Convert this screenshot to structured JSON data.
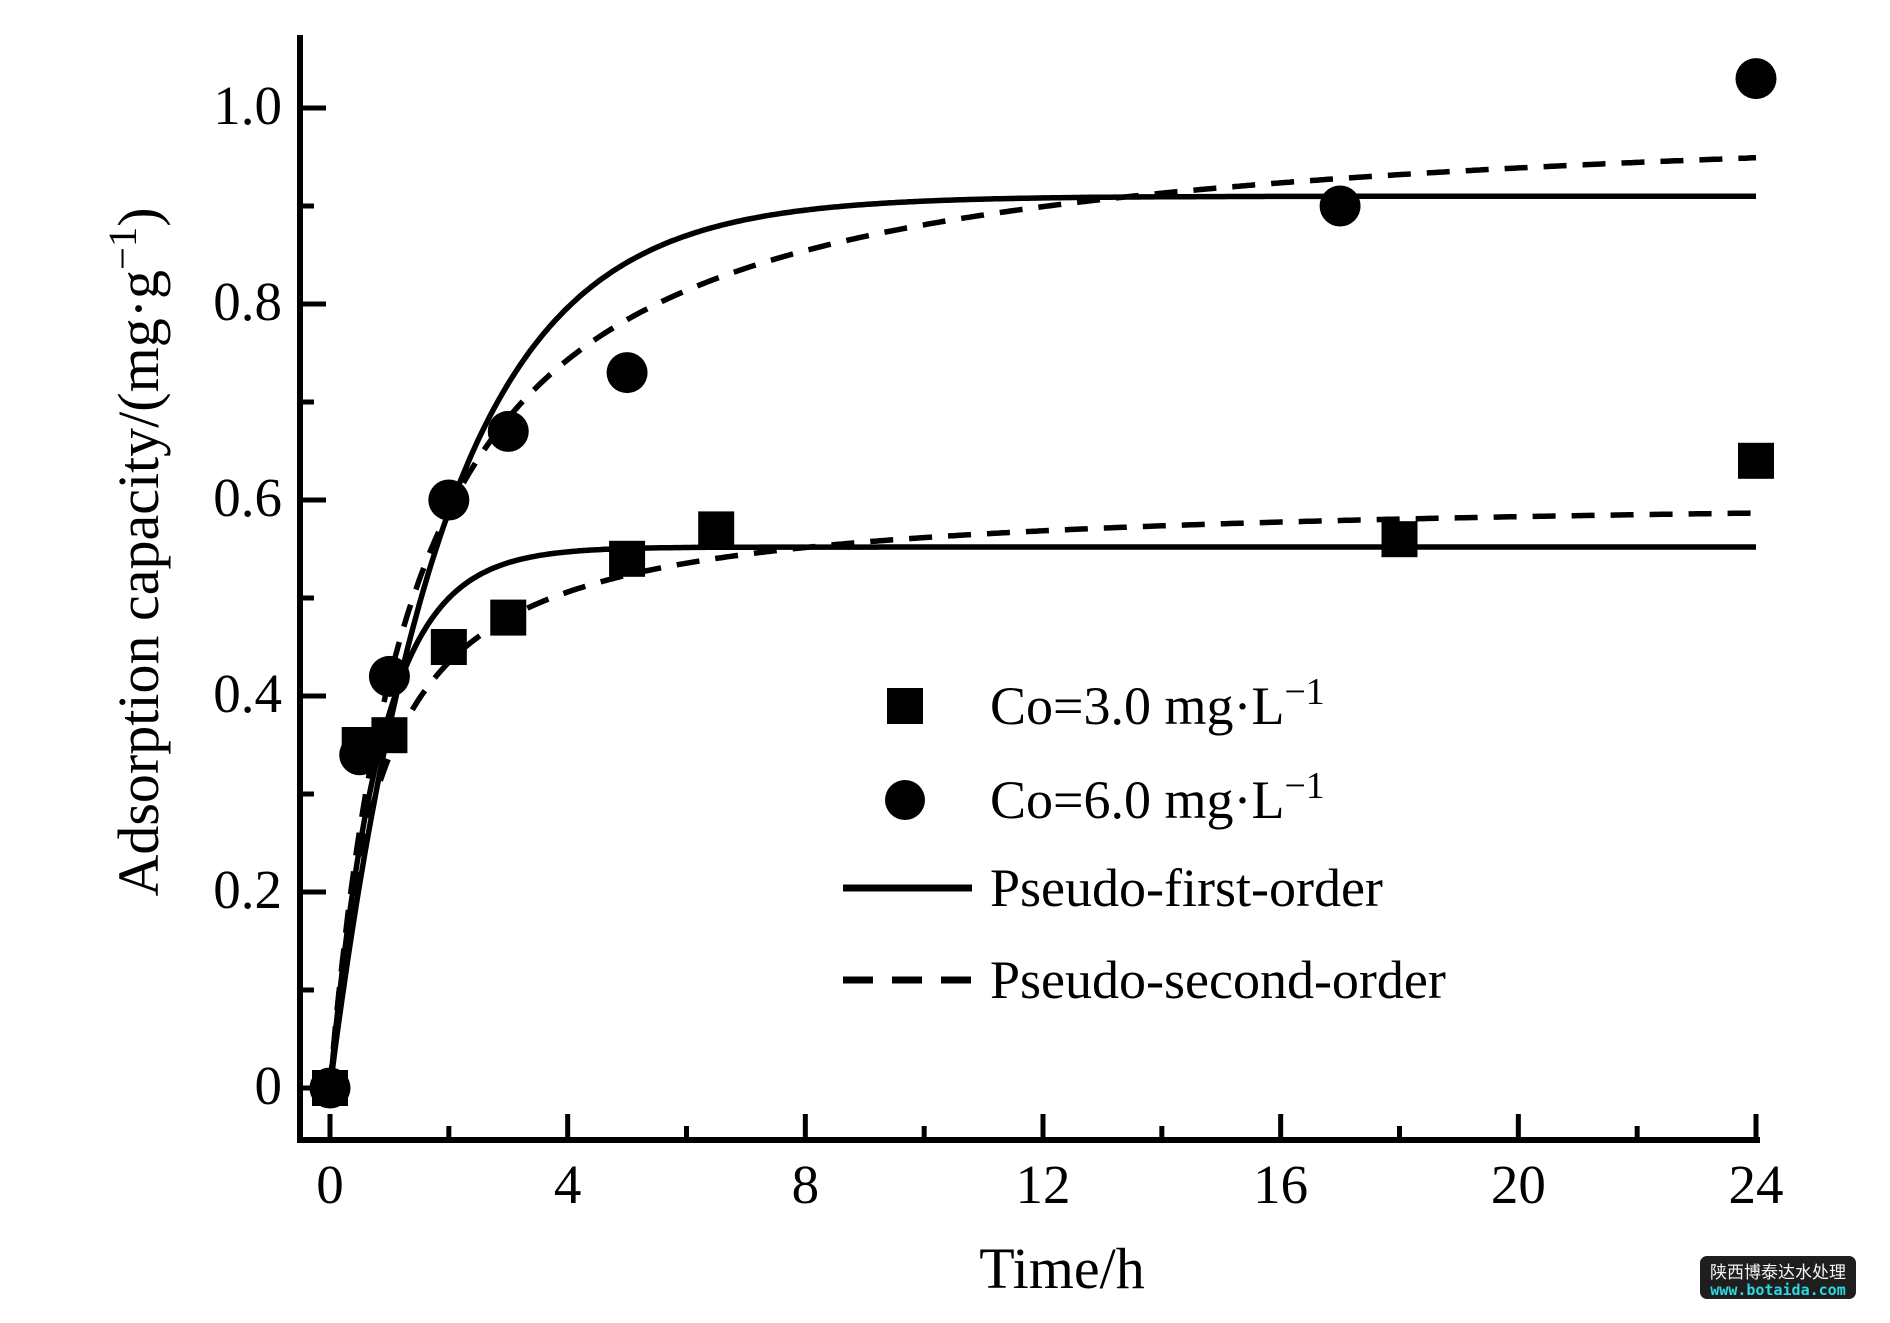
{
  "figure": {
    "x_axis": {
      "label": "Time/h",
      "major_ticks": [
        0,
        4,
        8,
        12,
        16,
        20,
        24
      ],
      "minor_ticks": [
        2,
        6,
        10,
        14,
        18,
        22
      ],
      "tick_labels": [
        "0",
        "4",
        "8",
        "12",
        "16",
        "20",
        "24"
      ]
    },
    "y_axis": {
      "label_pre": "Adsorption capacity/(mg·g",
      "label_sup": "−1",
      "label_post": ")",
      "major_ticks": [
        0,
        0.2,
        0.4,
        0.6,
        0.8,
        1.0
      ],
      "minor_ticks": [
        0.1,
        0.3,
        0.5,
        0.7,
        0.9
      ],
      "tick_labels": [
        "0",
        "0.2",
        "0.4",
        "0.6",
        "0.8",
        "1.0"
      ]
    },
    "legend": [
      {
        "sample": "square",
        "text": "Co=3.0 mg·L",
        "sup": "−1"
      },
      {
        "sample": "circle",
        "text": "Co=6.0 mg·L",
        "sup": "−1"
      },
      {
        "sample": "line-solid",
        "text": "Pseudo-first-order",
        "sup": null
      },
      {
        "sample": "line-dashed",
        "text": "Pseudo-second-order",
        "sup": null
      }
    ],
    "watermark": {
      "line1": "陕西博泰达水处理",
      "line2": "www.botaida.com",
      "bg_color": "#1e1e1e",
      "line1_color": "#f5f5f5",
      "line2_color": "#2bd8e4"
    }
  },
  "chart_data": {
    "type": "scatter",
    "title": "",
    "xlabel": "Time/h",
    "ylabel": "Adsorption capacity/(mg·g−1)",
    "xlim": [
      0,
      24
    ],
    "ylim": [
      0,
      1.05
    ],
    "grid": false,
    "legend_position": "inside-center-right",
    "series": [
      {
        "name": "Co=3.0 mg·L−1",
        "marker": "square",
        "x": [
          0,
          0.5,
          1,
          2,
          3,
          5,
          6.5,
          18,
          24
        ],
        "y": [
          0,
          0.35,
          0.36,
          0.45,
          0.48,
          0.54,
          0.57,
          0.56,
          0.64
        ]
      },
      {
        "name": "Co=6.0 mg·L−1",
        "marker": "circle",
        "x": [
          0,
          0.5,
          1,
          2,
          3,
          5,
          17,
          24
        ],
        "y": [
          0,
          0.34,
          0.42,
          0.6,
          0.67,
          0.73,
          0.9,
          1.03
        ]
      }
    ],
    "fitted_curves": [
      {
        "name": "Pseudo-first-order Co=3.0",
        "style": "solid",
        "model": "pfo",
        "qe": 0.552,
        "k1": 1.18
      },
      {
        "name": "Pseudo-first-order Co=6.0",
        "style": "solid",
        "model": "pfo",
        "qe": 0.91,
        "k1": 0.52
      },
      {
        "name": "Pseudo-second-order Co=3.0",
        "style": "dashed",
        "model": "pso",
        "qe": 0.606,
        "k2": 2.09
      },
      {
        "name": "Pseudo-second-order Co=6.0",
        "style": "dashed",
        "model": "pso",
        "qe": 1.005,
        "k2": 0.706
      }
    ]
  }
}
